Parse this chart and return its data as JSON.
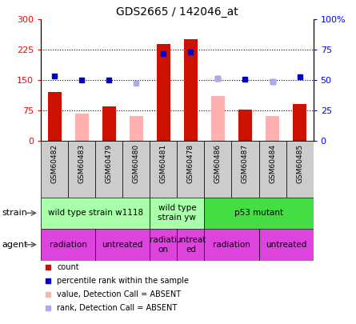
{
  "title": "GDS2665 / 142046_at",
  "samples": [
    "GSM60482",
    "GSM60483",
    "GSM60479",
    "GSM60480",
    "GSM60481",
    "GSM60478",
    "GSM60486",
    "GSM60487",
    "GSM60484",
    "GSM60485"
  ],
  "count_values": [
    120,
    null,
    85,
    null,
    240,
    252,
    null,
    78,
    null,
    92
  ],
  "absent_count_values": [
    null,
    68,
    null,
    62,
    null,
    null,
    110,
    null,
    62,
    null
  ],
  "blue_dot_values": [
    160,
    150,
    150,
    null,
    215,
    220,
    155,
    152,
    147,
    158
  ],
  "blue_absent_dot_values": [
    null,
    null,
    null,
    143,
    null,
    null,
    155,
    null,
    147,
    null
  ],
  "ylim_left": [
    0,
    300
  ],
  "ylim_right": [
    0,
    100
  ],
  "yticks_left": [
    0,
    75,
    150,
    225,
    300
  ],
  "yticks_right": [
    0,
    25,
    50,
    75,
    100
  ],
  "ytick_labels_left": [
    "0",
    "75",
    "150",
    "225",
    "300"
  ],
  "ytick_labels_right": [
    "0",
    "25",
    "50",
    "75",
    "100%"
  ],
  "strain_groups": [
    {
      "label": "wild type strain w1118",
      "start": 0,
      "end": 4,
      "color": "#aaffaa"
    },
    {
      "label": "wild type\nstrain yw",
      "start": 4,
      "end": 6,
      "color": "#aaffaa"
    },
    {
      "label": "p53 mutant",
      "start": 6,
      "end": 10,
      "color": "#44dd44"
    }
  ],
  "agent_groups": [
    {
      "label": "radiation",
      "start": 0,
      "end": 2
    },
    {
      "label": "untreated",
      "start": 2,
      "end": 4
    },
    {
      "label": "radiati\non",
      "start": 4,
      "end": 5
    },
    {
      "label": "untreat\ned",
      "start": 5,
      "end": 6
    },
    {
      "label": "radiation",
      "start": 6,
      "end": 8
    },
    {
      "label": "untreated",
      "start": 8,
      "end": 10
    }
  ],
  "agent_color": "#dd44dd",
  "bar_color": "#cc1100",
  "absent_bar_color": "#ffb0b0",
  "blue_dot_color": "#0000cc",
  "absent_blue_dot_color": "#aaaaee",
  "xlab_bg": "#cccccc",
  "legend_items": [
    {
      "color": "#cc1100",
      "label": "count"
    },
    {
      "color": "#0000cc",
      "label": "percentile rank within the sample"
    },
    {
      "color": "#ffb0b0",
      "label": "value, Detection Call = ABSENT"
    },
    {
      "color": "#aaaaee",
      "label": "rank, Detection Call = ABSENT"
    }
  ]
}
